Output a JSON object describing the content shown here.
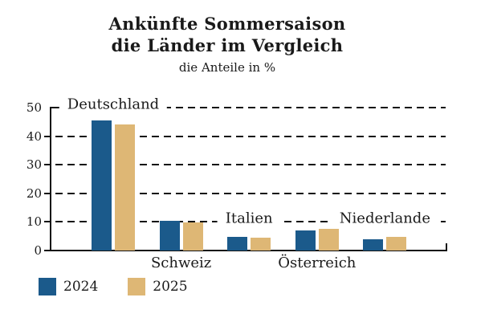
{
  "title": {
    "line1": "Ankünfte Sommersaison",
    "line2": "die Länder im Vergleich",
    "subtitle": "die Anteile in %"
  },
  "chart_data": {
    "type": "bar",
    "title": "Ankünfte Sommersaison die Länder im Vergleich",
    "subtitle": "die Anteile in %",
    "categories": [
      "Deutschland",
      "Schweiz",
      "Italien",
      "Österreich",
      "Niederlande"
    ],
    "series": [
      {
        "name": "2024",
        "color": "#1b5a8b",
        "values": [
          45.5,
          10.5,
          4.7,
          7.0,
          3.9
        ]
      },
      {
        "name": "2025",
        "color": "#deb775",
        "values": [
          44.2,
          9.8,
          4.5,
          7.5,
          4.8
        ]
      }
    ],
    "xlabel": "",
    "ylabel": "",
    "ylim": [
      0,
      50
    ],
    "yticks": [
      0,
      10,
      20,
      30,
      40,
      50
    ],
    "grid": "horizontal-dashed",
    "legend_position": "bottom-left",
    "category_label_placement": [
      {
        "category": "Deutschland",
        "position": "on-gridline",
        "gridline": 50
      },
      {
        "category": "Schweiz",
        "position": "below-axis"
      },
      {
        "category": "Italien",
        "position": "on-gridline",
        "gridline": 10
      },
      {
        "category": "Österreich",
        "position": "below-axis"
      },
      {
        "category": "Niederlande",
        "position": "on-gridline",
        "gridline": 10
      }
    ]
  },
  "colors": {
    "bar_2024": "#1b5a8b",
    "bar_2025": "#deb775",
    "axis": "#131313",
    "text": "#1a1a1a",
    "background": "#ffffff"
  }
}
